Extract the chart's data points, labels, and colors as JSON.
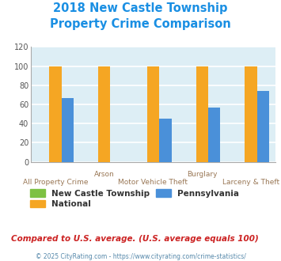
{
  "title_line1": "2018 New Castle Township",
  "title_line2": "Property Crime Comparison",
  "title_color": "#1a8fe3",
  "categories": [
    "All Property Crime",
    "Arson",
    "Motor Vehicle Theft",
    "Burglary",
    "Larceny & Theft"
  ],
  "series": {
    "New Castle Township": {
      "values": [
        0,
        0,
        0,
        0,
        0
      ],
      "color": "#7dc142"
    },
    "National": {
      "values": [
        100,
        100,
        100,
        100,
        100
      ],
      "color": "#f5a623"
    },
    "Pennsylvania": {
      "values": [
        67,
        0,
        45,
        57,
        74
      ],
      "color": "#4a90d9"
    }
  },
  "ylim": [
    0,
    120
  ],
  "yticks": [
    0,
    20,
    40,
    60,
    80,
    100,
    120
  ],
  "plot_bg_color": "#ddeef5",
  "grid_color": "#ffffff",
  "bar_width": 0.25,
  "footnote1": "Compared to U.S. average. (U.S. average equals 100)",
  "footnote2": "© 2025 CityRating.com - https://www.cityrating.com/crime-statistics/",
  "footnote1_color": "#cc2222",
  "footnote2_color": "#5588aa",
  "legend_labels": [
    "New Castle Township",
    "National",
    "Pennsylvania"
  ],
  "legend_colors": [
    "#7dc142",
    "#f5a623",
    "#4a90d9"
  ],
  "row1_indices": [
    1,
    3
  ],
  "row1_labels": [
    "Arson",
    "Burglary"
  ],
  "row2_indices": [
    0,
    2,
    4
  ],
  "row2_labels": [
    "All Property Crime",
    "Motor Vehicle Theft",
    "Larceny & Theft"
  ],
  "xlabel_color": "#997755",
  "ylabel_color": "#777777"
}
